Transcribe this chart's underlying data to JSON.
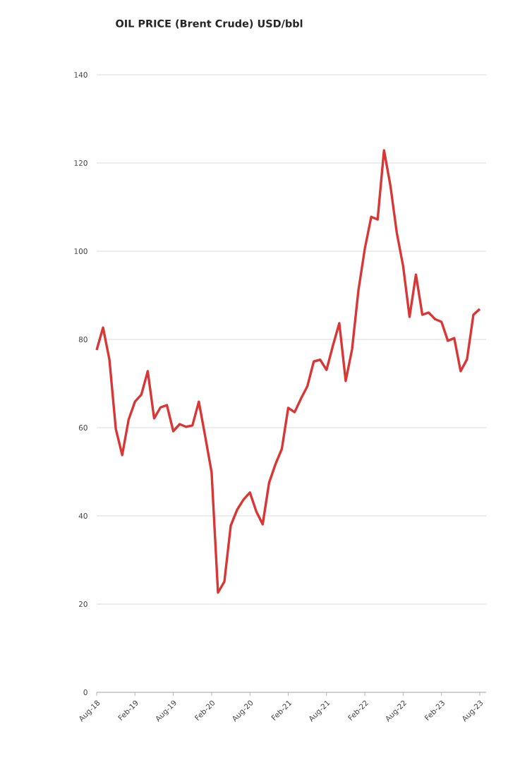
{
  "chart_data": {
    "type": "line",
    "title": "OIL PRICE (Brent Crude) USD/bbl",
    "x": [
      "2018-08",
      "2018-09",
      "2018-10",
      "2018-11",
      "2018-12",
      "2019-01",
      "2019-02",
      "2019-03",
      "2019-04",
      "2019-05",
      "2019-06",
      "2019-07",
      "2019-08",
      "2019-09",
      "2019-10",
      "2019-11",
      "2019-12",
      "2020-01",
      "2020-02",
      "2020-03",
      "2020-04",
      "2020-05",
      "2020-06",
      "2020-07",
      "2020-08",
      "2020-09",
      "2020-10",
      "2020-11",
      "2020-12",
      "2021-01",
      "2021-02",
      "2021-03",
      "2021-04",
      "2021-05",
      "2021-06",
      "2021-07",
      "2021-08",
      "2021-09",
      "2021-10",
      "2021-11",
      "2021-12",
      "2022-01",
      "2022-02",
      "2022-03",
      "2022-04",
      "2022-05",
      "2022-06",
      "2022-07",
      "2022-08",
      "2022-09",
      "2022-10",
      "2022-11",
      "2022-12",
      "2023-01",
      "2023-02",
      "2023-03",
      "2023-04",
      "2023-05",
      "2023-06",
      "2023-07",
      "2023-08"
    ],
    "values": [
      77.6,
      82.7,
      75.4,
      59.7,
      53.8,
      61.8,
      65.9,
      67.5,
      72.8,
      62.1,
      64.6,
      65.1,
      59.2,
      60.8,
      60.2,
      60.5,
      65.9,
      58,
      49.9,
      22.6,
      25.1,
      37.8,
      41.4,
      43.7,
      45.3,
      41.0,
      38.1,
      47.5,
      51.7,
      55.2,
      64.5,
      63.5,
      66.6,
      69.4,
      75.0,
      75.4,
      73.1,
      78.6,
      83.7,
      70.6,
      77.8,
      91.2,
      100.6,
      107.8,
      107.2,
      122.9,
      114.9,
      104.2,
      96.6,
      85.1,
      94.7,
      85.6,
      86.1,
      84.6,
      84.0,
      79.7,
      80.3,
      72.8,
      75.5,
      85.6,
      86.9
    ],
    "color": "#d93636",
    "line_style": "solid",
    "grid": "y",
    "xlim": [
      "2018-08",
      "2023-09"
    ],
    "xticks": [
      {
        "value": "2018-08",
        "label": "Aug-18"
      },
      {
        "value": "2019-02",
        "label": "Feb-19"
      },
      {
        "value": "2019-08",
        "label": "Aug-19"
      },
      {
        "value": "2020-02",
        "label": "Feb-20"
      },
      {
        "value": "2020-08",
        "label": "Aug-20"
      },
      {
        "value": "2021-02",
        "label": "Feb-21"
      },
      {
        "value": "2021-08",
        "label": "Aug-21"
      },
      {
        "value": "2022-02",
        "label": "Feb-22"
      },
      {
        "value": "2022-08",
        "label": "Aug-22"
      },
      {
        "value": "2023-02",
        "label": "Feb-23"
      },
      {
        "value": "2023-08",
        "label": "Aug-23"
      }
    ],
    "ylim": [
      0,
      140
    ],
    "yticks": [
      0,
      20,
      40,
      60,
      80,
      100,
      120,
      140
    ]
  }
}
